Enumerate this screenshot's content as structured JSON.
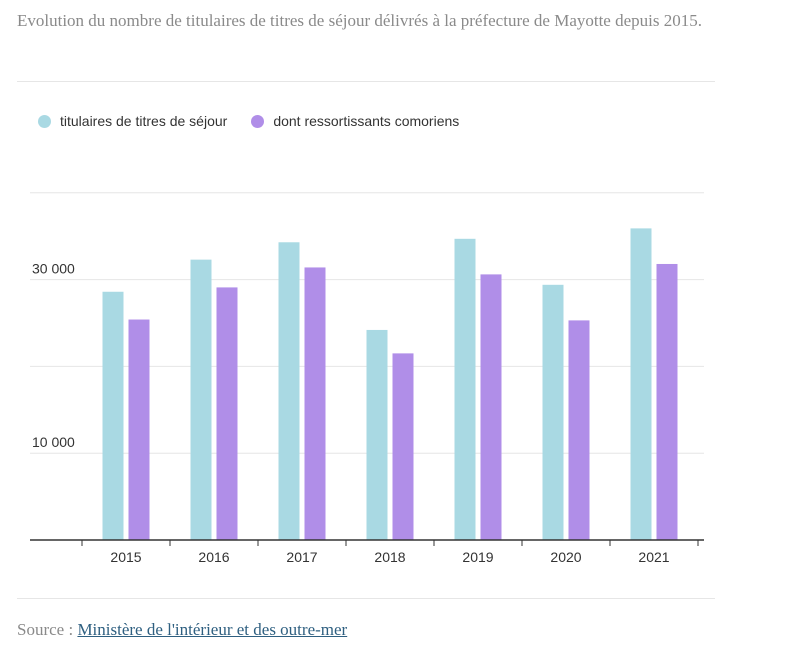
{
  "subtitle": "Evolution du nombre de titulaires de titres de séjour délivrés à la préfecture de Mayotte depuis 2015.",
  "source": {
    "prefix": "Source :",
    "link_text": "Ministère de l'intérieur et des outre-mer"
  },
  "colors": {
    "series1": "#a9d9e3",
    "series2": "#b08ee8",
    "grid": "#e6e6e6",
    "axis": "#333333"
  },
  "chart_data": {
    "type": "bar",
    "categories": [
      "2015",
      "2016",
      "2017",
      "2018",
      "2019",
      "2020",
      "2021"
    ],
    "series": [
      {
        "name": "titulaires de titres de séjour",
        "values": [
          28600,
          32300,
          34300,
          24200,
          34700,
          29400,
          35900
        ]
      },
      {
        "name": "dont ressortissants comoriens",
        "values": [
          25400,
          29100,
          31400,
          21500,
          30600,
          25300,
          31800
        ]
      }
    ],
    "yticks": [
      10000,
      30000
    ],
    "ytick_labels": [
      "10 000",
      "30 000"
    ],
    "ylim": [
      0,
      40000
    ],
    "grid": true,
    "legend_position": "top-left",
    "title": "",
    "xlabel": "",
    "ylabel": ""
  }
}
